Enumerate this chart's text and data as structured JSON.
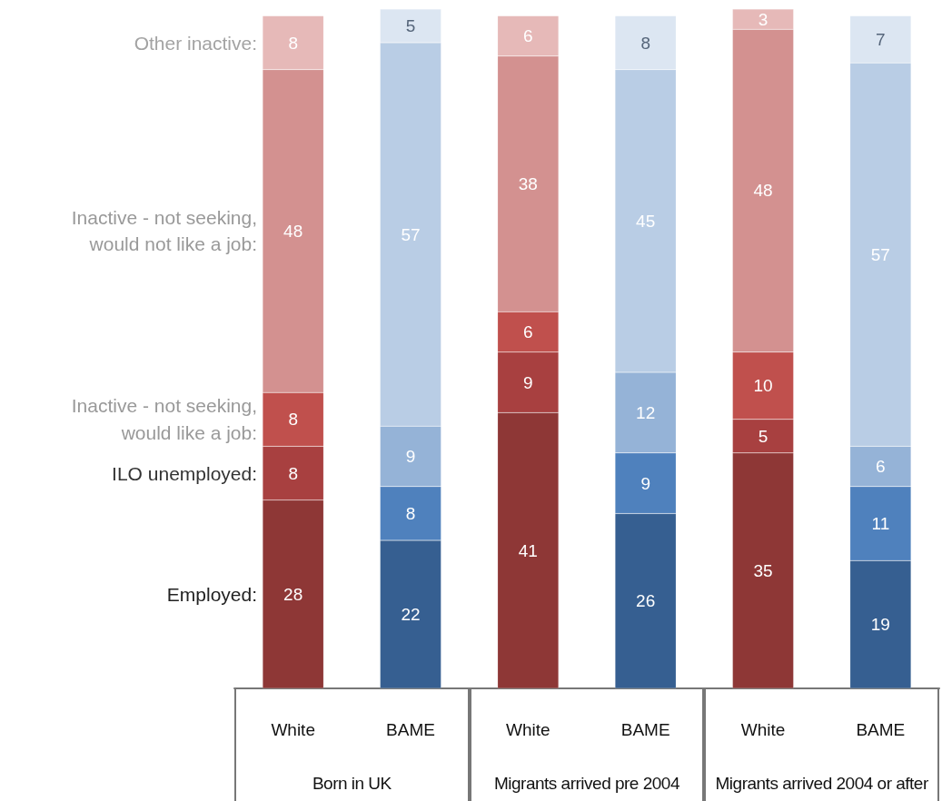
{
  "chart_data": {
    "type": "bar",
    "stacked": true,
    "data_labels": true,
    "legend": "left",
    "categories": [
      "White",
      "BAME",
      "White",
      "BAME",
      "White",
      "BAME"
    ],
    "annotations": [
      "Born in UK",
      "Migrants arrived pre 2004",
      "Migrants arrived 2004 or after"
    ],
    "series": [
      {
        "name": "Employed:",
        "colors": [
          "#8e3736",
          "#365f91",
          "#8e3736",
          "#365f91",
          "#8e3736",
          "#365f91"
        ],
        "values": [
          28,
          22,
          41,
          26,
          35,
          19
        ]
      },
      {
        "name": "ILO unemployed:",
        "colors": [
          "#a84040",
          "#4f81bd",
          "#a84040",
          "#4f81bd",
          "#a84040",
          "#4f81bd"
        ],
        "values": [
          8,
          8,
          9,
          9,
          5,
          11
        ]
      },
      {
        "name": "Inactive - not seeking, would like a job:",
        "colors": [
          "#c0504d",
          "#95b3d7",
          "#c0504d",
          "#95b3d7",
          "#c0504d",
          "#95b3d7"
        ],
        "values": [
          8,
          9,
          6,
          12,
          10,
          6
        ]
      },
      {
        "name": "Inactive - not seeking, would not like a job:",
        "colors": [
          "#d39190",
          "#b9cde5",
          "#d39190",
          "#b9cde5",
          "#d39190",
          "#b9cde5"
        ],
        "values": [
          48,
          57,
          38,
          45,
          48,
          57
        ]
      },
      {
        "name": "Other inactive:",
        "colors": [
          "#e6b9b8",
          "#dce6f2",
          "#e6b9b8",
          "#dce6f2",
          "#e6b9b8",
          "#dce6f2"
        ],
        "values": [
          8,
          5,
          6,
          8,
          3,
          7
        ]
      }
    ]
  }
}
